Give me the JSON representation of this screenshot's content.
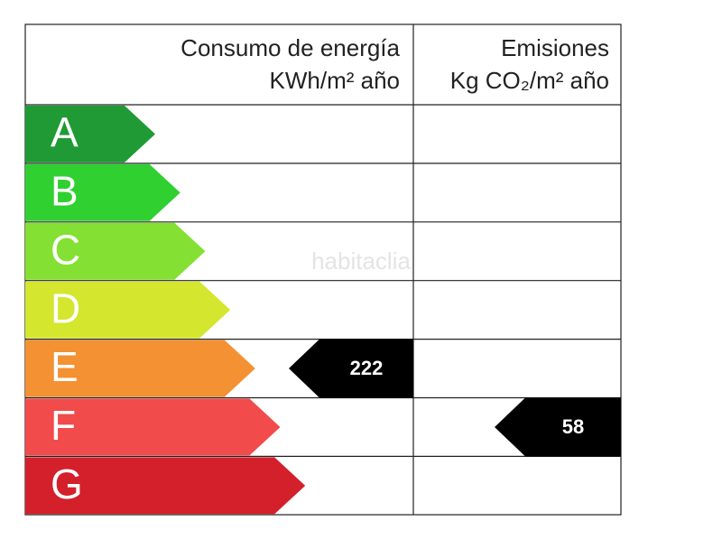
{
  "header": {
    "consumption_title": "Consumo de energía",
    "consumption_unit": "KWh/m² año",
    "emissions_title": "Emisiones",
    "emissions_unit": "Kg CO₂/m² año"
  },
  "classes": [
    {
      "letter": "A",
      "color": "#1f9a34"
    },
    {
      "letter": "B",
      "color": "#2fd030"
    },
    {
      "letter": "C",
      "color": "#84e032"
    },
    {
      "letter": "D",
      "color": "#d4e62e"
    },
    {
      "letter": "E",
      "color": "#f39133"
    },
    {
      "letter": "F",
      "color": "#f24b4b"
    },
    {
      "letter": "G",
      "color": "#d3202b"
    }
  ],
  "consumption": {
    "value": 222,
    "rating": "E"
  },
  "emissions": {
    "value": 58,
    "rating": "F"
  },
  "watermark": "habitaclia"
}
